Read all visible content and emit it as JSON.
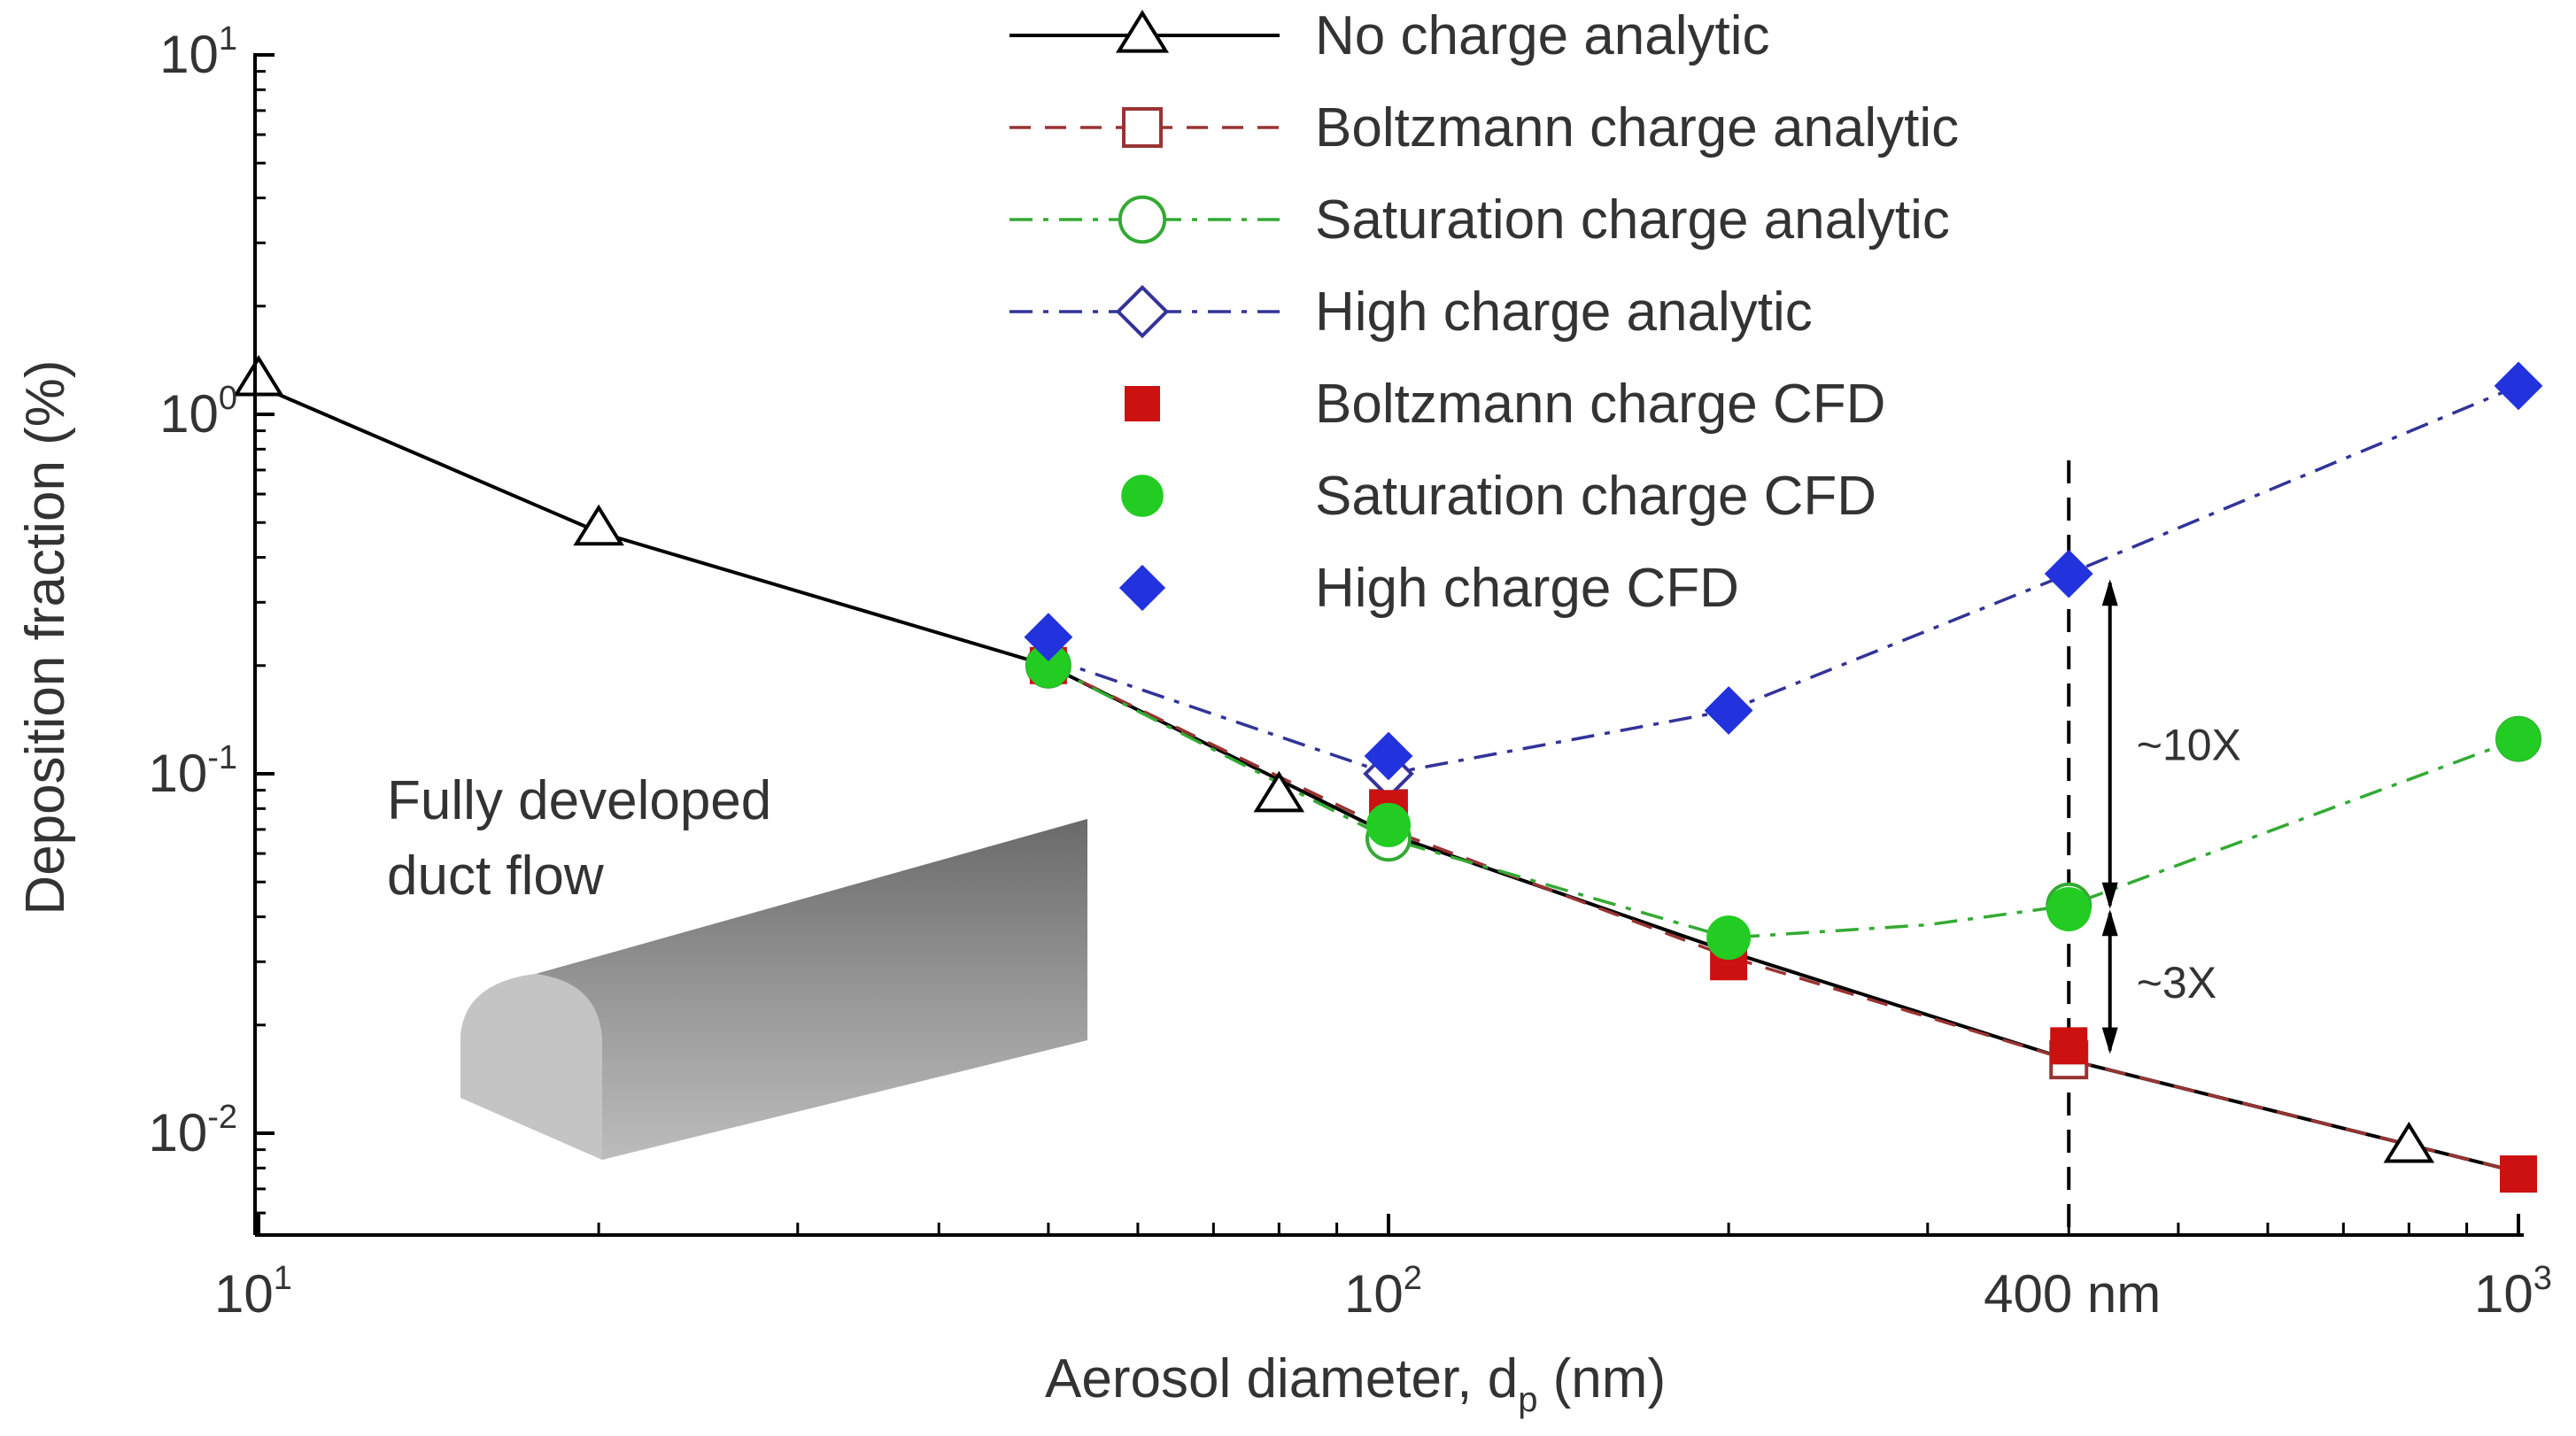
{
  "chart_data": {
    "type": "line",
    "xscale": "log",
    "yscale": "log",
    "xlim": [
      10,
      1000
    ],
    "ylim": [
      0.00577,
      10
    ],
    "xlabel": {
      "main": "Aerosol diameter, d",
      "sub": "p",
      "unit": " (nm)"
    },
    "ylabel": "Deposition fraction (%)",
    "x_ticks": [
      {
        "value": 10,
        "base": "10",
        "exp": "1"
      },
      {
        "value": 100,
        "base": "10",
        "exp": "2"
      },
      {
        "value": 1000,
        "base": "10",
        "exp": "3"
      }
    ],
    "x_special_tick": {
      "value": 400,
      "label": "400 nm"
    },
    "y_ticks": [
      {
        "value": 10,
        "base": "10",
        "exp": "1"
      },
      {
        "value": 1,
        "base": "10",
        "exp": "0"
      },
      {
        "value": 0.1,
        "base": "10",
        "exp": "-1"
      },
      {
        "value": 0.01,
        "base": "10",
        "exp": "-2"
      }
    ],
    "series": [
      {
        "name": "No charge analytic",
        "role": "line",
        "color": "#000000",
        "dash": "solid",
        "marker": "triangle-open",
        "x": [
          10,
          20,
          50,
          100,
          200,
          400,
          1000
        ],
        "y": [
          1.2,
          0.47,
          0.2,
          0.068,
          0.032,
          0.016,
          0.0078
        ],
        "markers": {
          "x": [
            10,
            20,
            80,
            800
          ],
          "y": [
            1.25,
            0.48,
            0.087,
            0.0092
          ]
        }
      },
      {
        "name": "Boltzmann charge analytic",
        "role": "line",
        "color": "#993333",
        "dash": "dashed",
        "marker": "square-open",
        "x": [
          50,
          100,
          200,
          400,
          1000
        ],
        "y": [
          0.2,
          0.07,
          0.031,
          0.016,
          0.0078
        ],
        "markers": {
          "x": [
            100,
            400
          ],
          "y": [
            0.08,
            0.016
          ]
        }
      },
      {
        "name": "Saturation charge analytic",
        "role": "line",
        "color": "#33aa33",
        "dash": "dashdot",
        "marker": "circle-open",
        "x": [
          50,
          100,
          200,
          300,
          400,
          1000
        ],
        "y": [
          0.2,
          0.066,
          0.035,
          0.038,
          0.043,
          0.125
        ],
        "markers": {
          "x": [
            50,
            100,
            400,
            1000
          ],
          "y": [
            0.2,
            0.066,
            0.043,
            0.125
          ]
        }
      },
      {
        "name": "High charge analytic",
        "role": "line",
        "color": "#333399",
        "dash": "dashdot",
        "marker": "diamond-open",
        "x": [
          50,
          100,
          200,
          400,
          1000
        ],
        "y": [
          0.21,
          0.1,
          0.15,
          0.36,
          1.2
        ],
        "markers": {
          "x": [
            100
          ],
          "y": [
            0.1
          ]
        }
      },
      {
        "name": "Boltzmann charge CFD",
        "role": "points",
        "color": "#cc1111",
        "marker": "square",
        "x": [
          50,
          100,
          200,
          400,
          1000
        ],
        "y": [
          0.2,
          0.08,
          0.03,
          0.0175,
          0.0077
        ]
      },
      {
        "name": "Saturation charge CFD",
        "role": "points",
        "color": "#22cc22",
        "marker": "circle",
        "x": [
          50,
          100,
          200,
          400,
          1000
        ],
        "y": [
          0.2,
          0.072,
          0.035,
          0.042,
          0.125
        ]
      },
      {
        "name": "High charge CFD",
        "role": "points",
        "color": "#2233dd",
        "marker": "diamond",
        "x": [
          50,
          100,
          200,
          400,
          1000
        ],
        "y": [
          0.24,
          0.112,
          0.15,
          0.36,
          1.2
        ]
      }
    ],
    "reference_line": {
      "x": 400,
      "style": "dashed",
      "color": "#000000"
    },
    "ratio_annotations": [
      {
        "label": "~10X",
        "x": 435,
        "y_from": 0.34,
        "y_to": 0.043
      },
      {
        "label": "~3X",
        "x": 435,
        "y_from": 0.041,
        "y_to": 0.017
      }
    ],
    "inset_label": [
      "Fully developed",
      "duct flow"
    ],
    "legend_position": "top-right"
  }
}
